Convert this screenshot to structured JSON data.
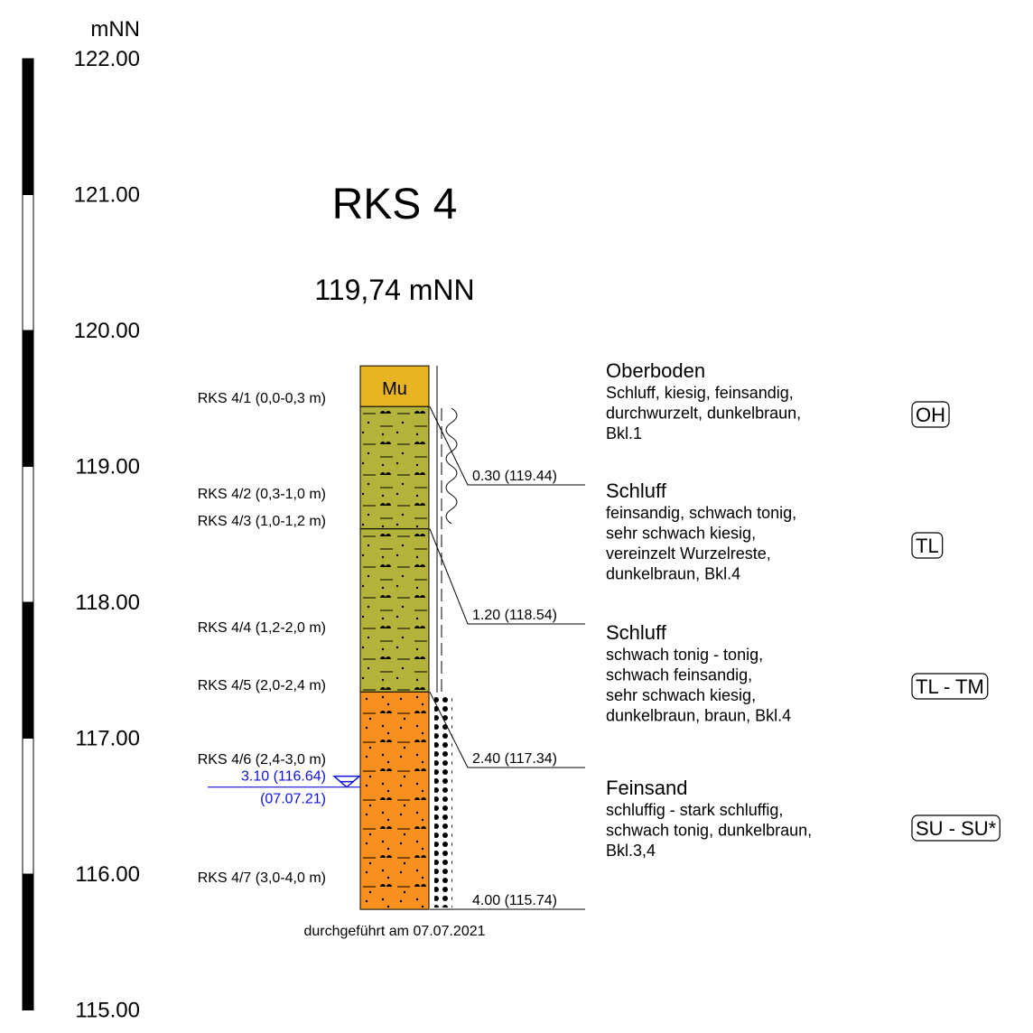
{
  "title": "RKS 4",
  "elevation": "119,74 mNN",
  "top_elevation": 119.74,
  "elevation_scale": {
    "unit": "mNN",
    "ticks": [
      {
        "value": 122,
        "label": "122.00"
      },
      {
        "value": 121,
        "label": "121.00"
      },
      {
        "value": 120,
        "label": "120.00"
      },
      {
        "value": 119,
        "label": "119.00"
      },
      {
        "value": 118,
        "label": "118.00"
      },
      {
        "value": 117,
        "label": "117.00"
      },
      {
        "value": 116,
        "label": "116.00"
      },
      {
        "value": 115,
        "label": "115.00"
      }
    ]
  },
  "layers": [
    {
      "name": "Oberboden",
      "symbol": "Mu",
      "bottom": 0.3,
      "depth_label": "0.30 (119.44)",
      "color": "#e6b422",
      "class": "OH",
      "description": [
        "Schluff, kiesig, feinsandig,",
        "durchwurzelt, dunkelbraun,",
        "Bkl.1"
      ]
    },
    {
      "name": "Schluff",
      "bottom": 1.2,
      "depth_label": "1.20 (118.54)",
      "color": "#b3b33b",
      "class": "TL",
      "description": [
        "feinsandig, schwach tonig,",
        "sehr schwach kiesig,",
        "vereinzelt Wurzelreste,",
        "dunkelbraun, Bkl.4"
      ]
    },
    {
      "name": "Schluff",
      "bottom": 2.4,
      "depth_label": "2.40 (117.34)",
      "color": "#b3b33b",
      "class": "TL - TM",
      "description": [
        "schwach tonig - tonig,",
        "schwach feinsandig,",
        "sehr schwach kiesig,",
        "dunkelbraun, braun, Bkl.4"
      ]
    },
    {
      "name": "Feinsand",
      "bottom": 4.0,
      "depth_label": "4.00 (115.74)",
      "color": "#f7901e",
      "class": "SU - SU*",
      "description": [
        "schluffig - stark schluffig,",
        "schwach tonig, dunkelbraun,",
        "Bkl.3,4"
      ]
    }
  ],
  "samples": [
    "RKS 4/1 (0,0-0,3 m)",
    "RKS 4/2 (0,3-1,0 m)",
    "RKS 4/3 (1,0-1,2 m)",
    "RKS 4/4 (1,2-2,0 m)",
    "RKS 4/5 (2,0-2,4 m)",
    "RKS 4/6 (2,4-3,0 m)",
    "RKS 4/7 (3,0-4,0 m)"
  ],
  "water_level": {
    "depth": 3.1,
    "label": "3.10 (116.64)",
    "date": "(07.07.21)"
  },
  "footer": "durchgeführt am 07.07.2021"
}
